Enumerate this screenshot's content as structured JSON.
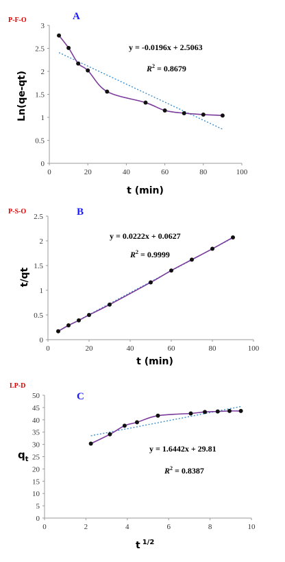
{
  "chart_data": [
    {
      "type": "scatter",
      "tag": "P-F-O",
      "letter": "A",
      "xlabel": "t (min)",
      "ylabel": "Ln(qe-qt)",
      "xlim": [
        0,
        100
      ],
      "ylim": [
        0,
        3
      ],
      "xticks": [
        "0",
        "20",
        "40",
        "60",
        "80",
        "100"
      ],
      "yticks": [
        "0",
        "0.5",
        "1",
        "1.5",
        "2",
        "2.5",
        "3"
      ],
      "x": [
        5,
        10,
        15,
        20,
        30,
        50,
        60,
        70,
        80,
        90
      ],
      "y": [
        2.78,
        2.51,
        2.17,
        2.02,
        1.56,
        1.32,
        1.15,
        1.09,
        1.06,
        1.04
      ],
      "trendline": {
        "slope": -0.0196,
        "intercept": 2.5063,
        "x_range": [
          5,
          90
        ]
      },
      "equation": "y = -0.0196x + 2.5063",
      "r2_prefix": "R",
      "r2_value": " = 0.8679"
    },
    {
      "type": "scatter",
      "tag": "P-S-O",
      "letter": "B",
      "xlabel": "t (min)",
      "ylabel": "t/qt",
      "xlim": [
        0,
        100
      ],
      "ylim": [
        0,
        2.5
      ],
      "xticks": [
        "0",
        "20",
        "40",
        "60",
        "80",
        "100"
      ],
      "yticks": [
        "0",
        "0.5",
        "1",
        "1.5",
        "2",
        "2.5"
      ],
      "x": [
        5,
        10,
        15,
        20,
        30,
        50,
        60,
        70,
        80,
        90
      ],
      "y": [
        0.17,
        0.29,
        0.39,
        0.5,
        0.71,
        1.16,
        1.4,
        1.62,
        1.84,
        2.07
      ],
      "trendline": {
        "slope": 0.0222,
        "intercept": 0.0627,
        "x_range": [
          5,
          90
        ]
      },
      "equation": "y = 0.0222x + 0.0627",
      "r2_prefix": "R",
      "r2_value": " = 0.9999"
    },
    {
      "type": "scatter",
      "tag": "LP-D",
      "letter": "C",
      "xlabel": "t",
      "xlabel_sup": "1/2",
      "ylabel": "q",
      "ylabel_sub": "t",
      "xlim": [
        0,
        10
      ],
      "ylim": [
        0,
        50
      ],
      "xticks": [
        "0",
        "2",
        "4",
        "6",
        "8",
        "10"
      ],
      "yticks": [
        "0",
        "5",
        "10",
        "15",
        "20",
        "25",
        "30",
        "35",
        "40",
        "45",
        "50"
      ],
      "x": [
        2.24,
        3.16,
        3.87,
        4.47,
        5.48,
        7.07,
        7.75,
        8.37,
        8.94,
        9.49
      ],
      "y": [
        30.3,
        34.1,
        37.6,
        39.0,
        41.7,
        42.6,
        43.2,
        43.4,
        43.6,
        43.6
      ],
      "trendline": {
        "slope": 1.6442,
        "intercept": 29.81,
        "x_range": [
          2.24,
          9.49
        ]
      },
      "equation": "y = 1.6442x + 29.81",
      "r2_prefix": "R",
      "r2_value": " = 0.8387"
    }
  ]
}
